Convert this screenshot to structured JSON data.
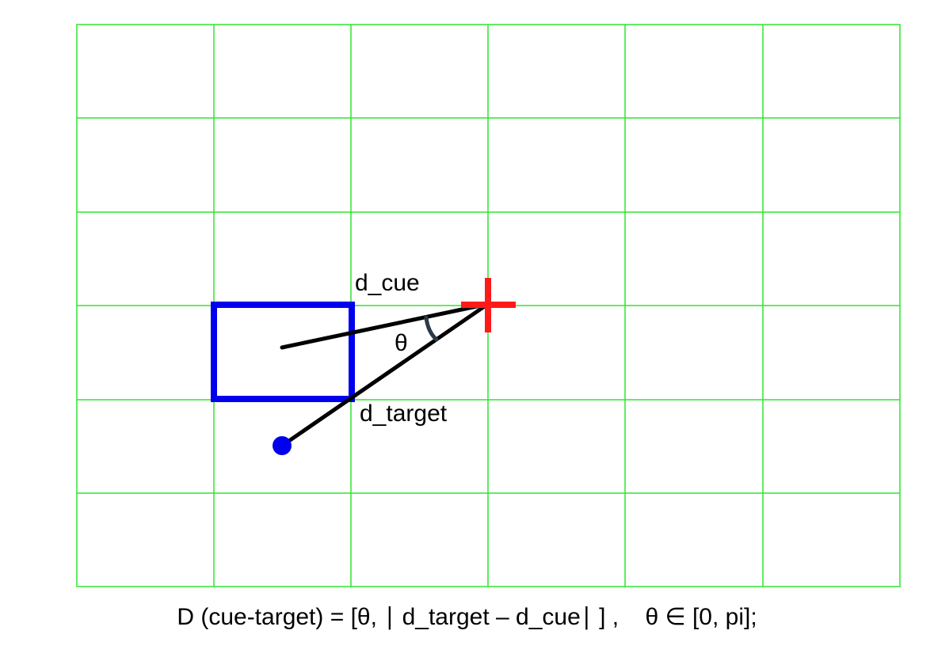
{
  "diagram": {
    "grid": {
      "columns": 6,
      "rows": 6,
      "line_color": "#2ee62e"
    },
    "labels": {
      "d_cue": "d_cue",
      "d_target": "d_target",
      "theta": "θ"
    },
    "colors": {
      "cue_rectangle": "#0000ee",
      "target_dot": "#0000ee",
      "fixation_cross": "#ff1a1a",
      "vector_lines": "#000000",
      "angle_arc": "#2b3a4a"
    },
    "icons": {
      "fixation": "red-cross-icon",
      "target": "blue-dot-icon",
      "cue": "blue-rectangle-icon"
    }
  },
  "formula": "D (cue-target) = [θ, ∣ d_target – d_cue∣ ] ,    θ ∈ [0, pi];"
}
